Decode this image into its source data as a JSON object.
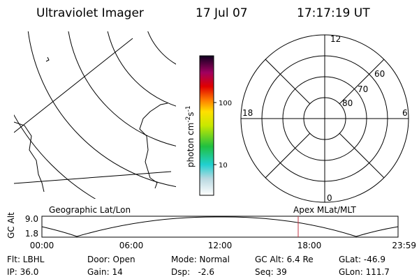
{
  "header": {
    "title": "Ultraviolet Imager",
    "date": "17 Jul 07",
    "time": "17:17:19 UT"
  },
  "colorbar": {
    "label": [
      "photon cm",
      "-2",
      "s",
      "-1"
    ],
    "ticks": [
      "100",
      "10"
    ]
  },
  "polar": {
    "labels": [
      "12",
      "6",
      "0",
      "18",
      "60",
      "70",
      "80"
    ]
  },
  "altitude_plot": {
    "y_label": "GC Alt",
    "yticks": [
      "9.0",
      "1.8"
    ],
    "left_title": "Geographic Lat/Lon",
    "right_title": "Apex MLat/MLT",
    "xticks": [
      "00:00",
      "06:00",
      "12:00",
      "18:00",
      "23:59"
    ]
  },
  "info": [
    [
      "Flt: LBHL",
      "Door: Open",
      "Mode: Normal",
      "GC Alt: 6.4 Re",
      "GLat: -46.9"
    ],
    [
      "IP: 36.0",
      "Gain: 14",
      "Dsp:   -2.6",
      "Seq: 39",
      "GLon: 111.7"
    ]
  ]
}
